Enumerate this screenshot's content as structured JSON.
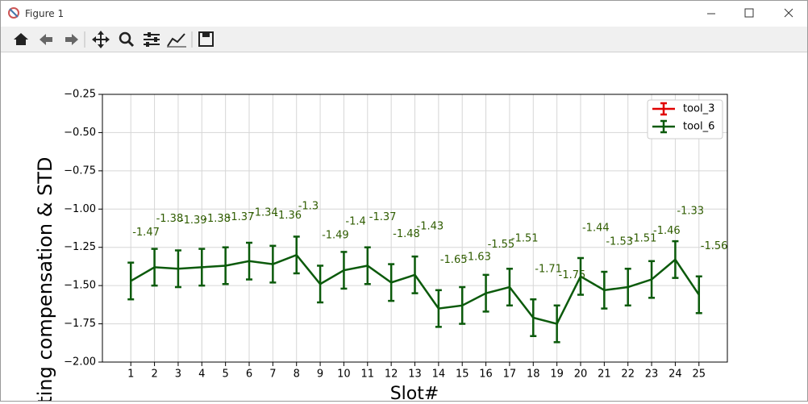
{
  "window_title": "Figure 1",
  "chart_data": {
    "type": "errorbar_line",
    "ylabel": "tilting compensation & STD",
    "xlabel": "Slot#",
    "x": [
      1,
      2,
      3,
      4,
      5,
      6,
      7,
      8,
      9,
      10,
      11,
      12,
      13,
      14,
      15,
      16,
      17,
      18,
      19,
      20,
      21,
      22,
      23,
      24,
      25
    ],
    "xlim": [
      -0.2,
      26.2
    ],
    "xticks": [
      1,
      2,
      3,
      4,
      5,
      6,
      7,
      8,
      9,
      10,
      11,
      12,
      13,
      14,
      15,
      16,
      17,
      18,
      19,
      20,
      21,
      22,
      23,
      24,
      25
    ],
    "ylim": [
      -2.0,
      -0.25
    ],
    "yticks": [
      {
        "value": -2.0,
        "label": "−2.00"
      },
      {
        "value": -1.75,
        "label": "−1.75"
      },
      {
        "value": -1.5,
        "label": "−1.50"
      },
      {
        "value": -1.25,
        "label": "−1.25"
      },
      {
        "value": -1.0,
        "label": "−1.00"
      },
      {
        "value": -0.75,
        "label": "−0.75"
      },
      {
        "value": -0.5,
        "label": "−0.50"
      },
      {
        "value": -0.25,
        "label": "−0.25"
      }
    ],
    "grid": true,
    "legend": "upper right",
    "series": [
      {
        "name": "tool_3",
        "color": "#e00000",
        "values": [
          null,
          null,
          null,
          null,
          null,
          null,
          null,
          null,
          null,
          null,
          null,
          null,
          null,
          null,
          null,
          null,
          null,
          null,
          null,
          null,
          null,
          null,
          null,
          null,
          null
        ],
        "errors": [
          null,
          null,
          null,
          null,
          null,
          null,
          null,
          null,
          null,
          null,
          null,
          null,
          null,
          null,
          null,
          null,
          null,
          null,
          null,
          null,
          null,
          null,
          null,
          null,
          null
        ]
      },
      {
        "name": "tool_6",
        "color": "#0b5a0b",
        "label_color": "#2f5c00",
        "values": [
          -1.47,
          -1.38,
          -1.39,
          -1.38,
          -1.37,
          -1.34,
          -1.36,
          -1.3,
          -1.49,
          -1.4,
          -1.37,
          -1.48,
          -1.43,
          -1.65,
          -1.63,
          -1.55,
          -1.51,
          -1.71,
          -1.75,
          -1.44,
          -1.53,
          -1.51,
          -1.46,
          -1.33,
          -1.56
        ],
        "errors": [
          0.12,
          0.12,
          0.12,
          0.12,
          0.12,
          0.12,
          0.12,
          0.12,
          0.12,
          0.12,
          0.12,
          0.12,
          0.12,
          0.12,
          0.12,
          0.12,
          0.12,
          0.12,
          0.12,
          0.12,
          0.12,
          0.12,
          0.12,
          0.12,
          0.12
        ]
      }
    ]
  }
}
